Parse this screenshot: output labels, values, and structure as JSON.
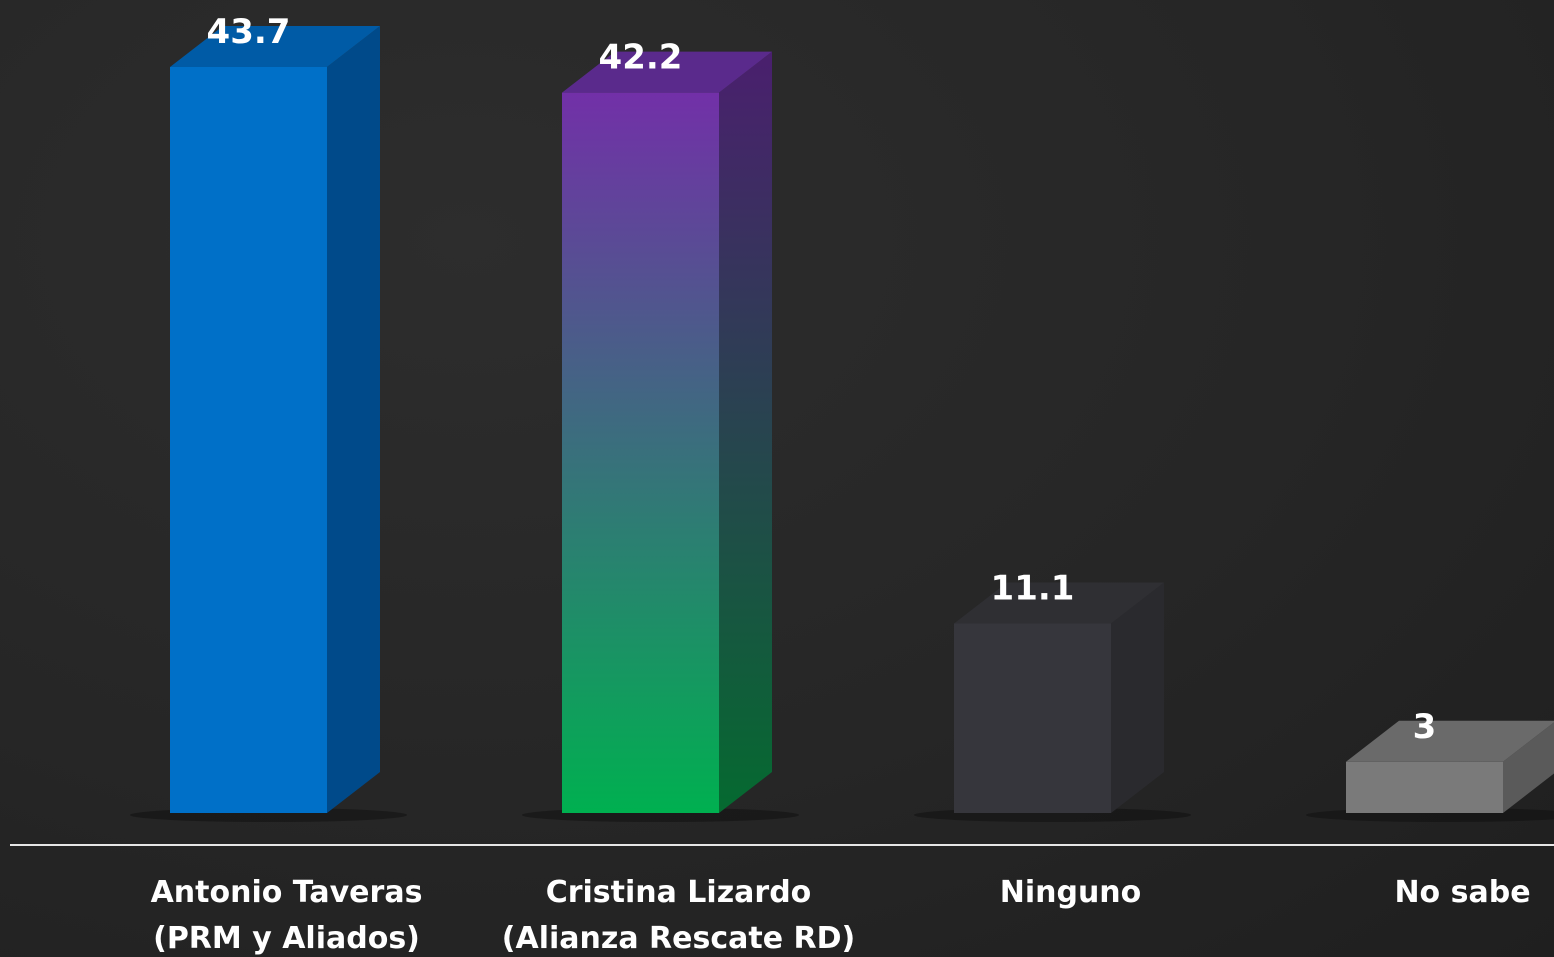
{
  "chart_data": {
    "type": "bar",
    "categories": [
      [
        "Antonio Taveras",
        "(PRM y Aliados)"
      ],
      [
        "Cristina Lizardo",
        "(Alianza Rescate RD)"
      ],
      [
        "Ninguno"
      ],
      [
        "No sabe"
      ]
    ],
    "values": [
      43.7,
      42.2,
      11.1,
      3
    ],
    "value_labels": [
      "43.7",
      "42.2",
      "11.1",
      "3"
    ],
    "title": "",
    "xlabel": "",
    "ylabel": "",
    "ylim": [
      0,
      43.7
    ],
    "grid": false,
    "legend": "none",
    "bar_style": "3d",
    "colors": [
      {
        "front": [
          "#0070c8",
          "#0070c8"
        ],
        "side": "#004a8a",
        "top": "#005ba6"
      },
      {
        "front": [
          "#7230a8",
          "#00b050"
        ],
        "side_top": "#4a1f6e",
        "side_bottom": "#056a30",
        "top": "#5a2a8c"
      },
      {
        "front": [
          "#36363c",
          "#36363c"
        ],
        "side": "#2a2a2e",
        "top": "#2f2f33"
      },
      {
        "front": [
          "#7a7a7a",
          "#7a7a7a"
        ],
        "side": "#5a5a5a",
        "top": "#6a6a6a"
      }
    ],
    "baseline_color": "#e6e6e6"
  }
}
